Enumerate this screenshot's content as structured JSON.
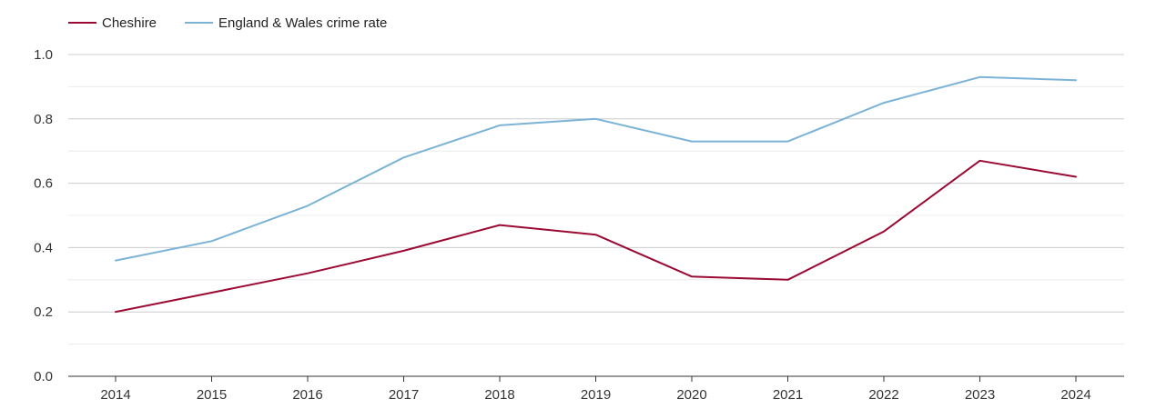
{
  "chart_data": {
    "type": "line",
    "title": "",
    "xlabel": "",
    "ylabel": "",
    "categories": [
      "2014",
      "2015",
      "2016",
      "2017",
      "2018",
      "2019",
      "2020",
      "2021",
      "2022",
      "2023",
      "2024"
    ],
    "ylim": [
      0,
      1.0
    ],
    "yticks": [
      "0.0",
      "0.2",
      "0.4",
      "0.6",
      "0.8",
      "1.0"
    ],
    "ytick_values": [
      0,
      0.2,
      0.4,
      0.6,
      0.8,
      1.0
    ],
    "minor_grid_values": [
      0.1,
      0.3,
      0.5,
      0.7,
      0.9
    ],
    "grid": true,
    "legend_position": "top-left",
    "series": [
      {
        "name": "Cheshire",
        "color": "#9b0a33",
        "values": [
          0.2,
          0.26,
          0.32,
          0.39,
          0.47,
          0.44,
          0.31,
          0.3,
          0.45,
          0.67,
          0.62
        ]
      },
      {
        "name": "England & Wales crime rate",
        "color": "#7bb3d6",
        "values": [
          0.36,
          0.42,
          0.53,
          0.68,
          0.78,
          0.8,
          0.73,
          0.73,
          0.85,
          0.93,
          0.92
        ]
      }
    ]
  },
  "colors": {
    "grid": "#cccccc",
    "minor_grid": "#ececec",
    "axis": "#333333"
  }
}
